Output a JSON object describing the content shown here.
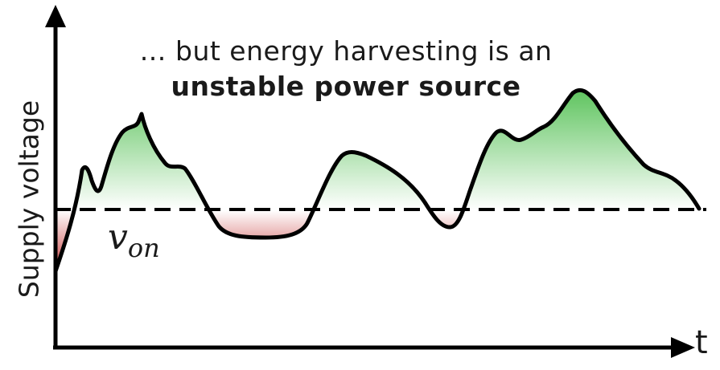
{
  "caption": {
    "line1": "… but energy harvesting is an",
    "line2": "unstable power source"
  },
  "axes": {
    "y_label": "Supply voltage",
    "x_label": "t"
  },
  "threshold": {
    "symbol": "v",
    "subscript": "on"
  },
  "colors": {
    "above_threshold_fill": "#5cc35c",
    "below_threshold_fill": "#c83a3a",
    "curve": "#000000",
    "axes": "#000000"
  }
}
